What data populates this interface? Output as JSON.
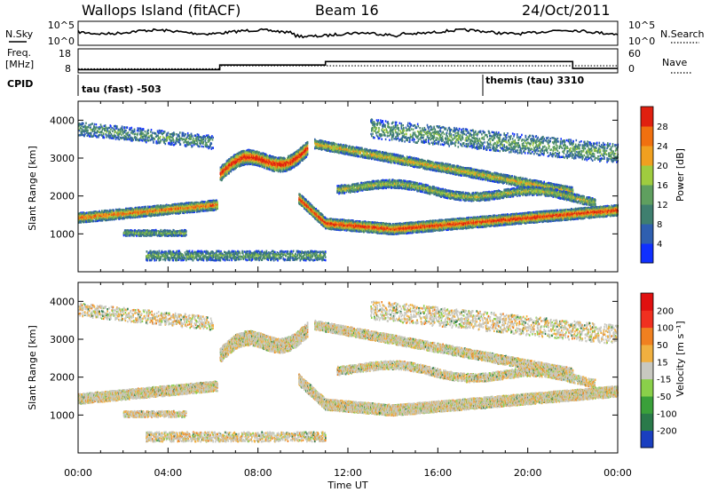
{
  "header": {
    "site": "Wallops Island (fitACF)",
    "beam": "Beam 16",
    "date": "24/Oct/2011"
  },
  "top_panels": {
    "nsky_label": "N.Sky",
    "nsky_ticks": [
      "10^5",
      "10^0"
    ],
    "nsearch_label": "N.Search",
    "nsearch_ticks": [
      "10^5",
      "10^0"
    ],
    "freq_label_1": "Freq.",
    "freq_label_2": "[MHz]",
    "freq_ticks": [
      "18",
      "8"
    ],
    "nave_label": "Nave",
    "nave_ticks": [
      "60",
      "0"
    ],
    "cpid_label": "CPID",
    "cpid_segments": [
      {
        "label": "tau (fast) -503",
        "start_hour": 0.0
      },
      {
        "label": "themis (tau) 3310",
        "start_hour": 18.0
      }
    ]
  },
  "chart_data": [
    {
      "type": "heatmap",
      "name": "power",
      "ylabel": "Slant Range [km]",
      "ylim": [
        0,
        4500
      ],
      "yticks": [
        "1000",
        "2000",
        "3000",
        "4000"
      ],
      "xlim": [
        0,
        24
      ],
      "xticks": [
        "00:00",
        "04:00",
        "08:00",
        "12:00",
        "16:00",
        "20:00",
        "00:00"
      ],
      "colorbar_label": "Power [dB]",
      "colorbar_ticks": [
        "4",
        "8",
        "12",
        "16",
        "20",
        "24",
        "28"
      ],
      "colorbar_colors": [
        "#1030ff",
        "#2f5fb0",
        "#3f7f6f",
        "#5f9f5f",
        "#9fcc3f",
        "#f0a020",
        "#f07010",
        "#e02010"
      ]
    },
    {
      "type": "heatmap",
      "name": "velocity",
      "ylabel": "Slant Range [km]",
      "ylim": [
        0,
        4500
      ],
      "yticks": [
        "1000",
        "2000",
        "3000",
        "4000"
      ],
      "xlim": [
        0,
        24
      ],
      "xticks": [
        "00:00",
        "04:00",
        "08:00",
        "12:00",
        "16:00",
        "20:00",
        "00:00"
      ],
      "xlabel": "Time UT",
      "colorbar_label": "Velocity [m s⁻¹]",
      "colorbar_ticks": [
        "200",
        "100",
        "50",
        "15",
        "-15",
        "-50",
        "-100",
        "-200"
      ],
      "colorbar_colors": [
        "#1a3fc0",
        "#2a7a4a",
        "#3aa03a",
        "#8ad04a",
        "#c8c8c0",
        "#f0b040",
        "#f08020",
        "#f03020",
        "#e01010"
      ]
    }
  ],
  "colors": {
    "power_core": "#e02010",
    "velocity_core": "#c8c8c0"
  }
}
